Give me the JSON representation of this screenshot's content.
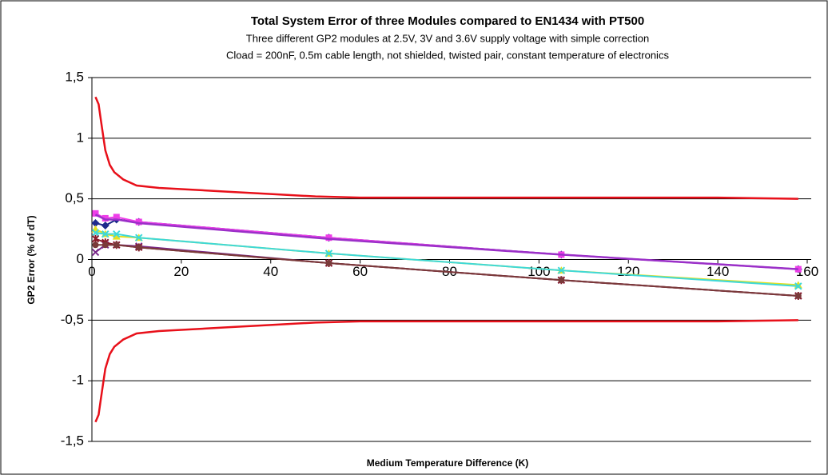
{
  "chart_data": {
    "type": "line",
    "title": "Total System Error of three Modules compared to EN1434 with PT500",
    "subtitle": [
      "Three different GP2 modules at 2.5V, 3V and 3.6V supply voltage with simple correction",
      "Cload = 200nF, 0.5m cable length, not shielded, twisted pair, constant temperature of electronics"
    ],
    "x_label": "Medium Temperature Difference (K)",
    "y_label": "GP2 Error (% of dT)",
    "xlim": [
      0,
      160
    ],
    "xticks": [
      0,
      20,
      40,
      60,
      80,
      100,
      120,
      140,
      160
    ],
    "ylim": [
      -1.5,
      1.5
    ],
    "yticks": [
      {
        "value": -1.5,
        "label": "-1,5"
      },
      {
        "value": -1,
        "label": "-1"
      },
      {
        "value": -0.5,
        "label": "-0,5"
      },
      {
        "value": 0,
        "label": "0"
      },
      {
        "value": 0.5,
        "label": "0,5"
      },
      {
        "value": 1,
        "label": "1"
      },
      {
        "value": 1.5,
        "label": "1,5"
      }
    ],
    "grid": true,
    "series": [
      {
        "color": "#e8101a",
        "marker": "none",
        "x": [
          0.8,
          1.5,
          2,
          3,
          4,
          5,
          7,
          10,
          15,
          20,
          30,
          40,
          50,
          60,
          80,
          100,
          120,
          140,
          158
        ],
        "values": [
          1.34,
          1.28,
          1.15,
          0.9,
          0.78,
          0.72,
          0.66,
          0.61,
          0.59,
          0.58,
          0.56,
          0.54,
          0.52,
          0.51,
          0.51,
          0.51,
          0.51,
          0.51,
          0.5
        ]
      },
      {
        "color": "#e8101a",
        "marker": "none",
        "x": [
          0.8,
          1.5,
          2,
          3,
          4,
          5,
          7,
          10,
          15,
          20,
          30,
          40,
          50,
          60,
          80,
          100,
          120,
          140,
          158
        ],
        "values": [
          -1.34,
          -1.28,
          -1.15,
          -0.9,
          -0.78,
          -0.72,
          -0.66,
          -0.61,
          -0.59,
          -0.58,
          -0.56,
          -0.54,
          -0.52,
          -0.51,
          -0.51,
          -0.51,
          -0.51,
          -0.51,
          -0.5
        ]
      },
      {
        "color": "#1f2a8c",
        "marker": "diamond",
        "x": [
          0.8,
          3,
          5.5,
          10.5,
          53,
          105,
          158
        ],
        "values": [
          0.3,
          0.28,
          0.33,
          0.31,
          0.18,
          0.04,
          -0.08
        ]
      },
      {
        "color": "#ee3ee8",
        "marker": "square",
        "x": [
          0.8,
          3,
          5.5,
          10.5,
          53,
          105,
          158
        ],
        "values": [
          0.38,
          0.34,
          0.35,
          0.31,
          0.18,
          0.04,
          -0.08
        ]
      },
      {
        "color": "#9b30c8",
        "marker": "none",
        "x": [
          0.8,
          3,
          5.5,
          10.5,
          53,
          105,
          158
        ],
        "values": [
          0.37,
          0.33,
          0.33,
          0.3,
          0.17,
          0.04,
          -0.08
        ]
      },
      {
        "color": "#e6e020",
        "marker": "triangle",
        "x": [
          0.8,
          3,
          5.5,
          10.5,
          53,
          105,
          158
        ],
        "values": [
          0.25,
          0.21,
          0.19,
          0.18,
          0.05,
          -0.09,
          -0.21
        ]
      },
      {
        "color": "#3fd8d8",
        "marker": "cross",
        "x": [
          0.8,
          3,
          5.5,
          10.5,
          53,
          105,
          158
        ],
        "values": [
          0.22,
          0.21,
          0.21,
          0.18,
          0.05,
          -0.09,
          -0.22
        ]
      },
      {
        "color": "#7a2a8a",
        "marker": "cross",
        "x": [
          0.8,
          3,
          5.5,
          10.5,
          53,
          105,
          158
        ],
        "values": [
          0.06,
          0.12,
          0.12,
          0.11,
          -0.03,
          -0.17,
          -0.3
        ]
      },
      {
        "color": "#8a1a2a",
        "marker": "star",
        "x": [
          0.8,
          3,
          5.5,
          10.5,
          53,
          105,
          158
        ],
        "values": [
          0.17,
          0.14,
          0.12,
          0.1,
          -0.03,
          -0.17,
          -0.3
        ]
      },
      {
        "color": "#7a3a3a",
        "marker": "circle",
        "x": [
          0.8,
          3,
          5.5,
          10.5,
          53,
          105,
          158
        ],
        "values": [
          0.12,
          0.12,
          0.12,
          0.1,
          -0.03,
          -0.17,
          -0.3
        ]
      }
    ]
  }
}
